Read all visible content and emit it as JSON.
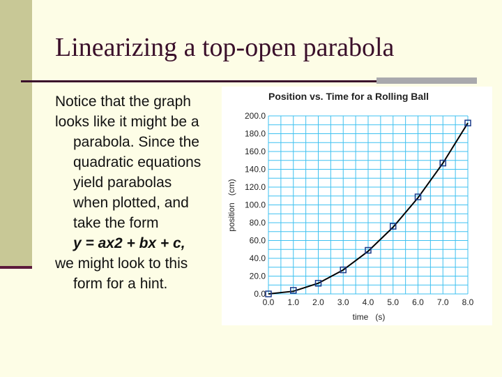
{
  "slide": {
    "title": "Linearizing a top-open parabola",
    "body_lines": [
      "Notice that the graph",
      "looks like it might be a",
      "parabola. Since the",
      "quadratic equations",
      "yield parabolas",
      "when plotted, and",
      "take the form",
      "y = ax2 + bx + c,",
      "we might look to this",
      "form for a hint."
    ]
  },
  "colors": {
    "background": "#fdfde6",
    "accent_strip": "#c8c896",
    "title_text": "#3a0f2a",
    "grid": "#3ec1f0",
    "marker": "#1a3a8a",
    "curve": "#000000"
  },
  "chart_data": {
    "type": "scatter",
    "title": "Position vs. Time for a Rolling Ball",
    "xlabel": "time   (s)",
    "ylabel": "position   (cm)",
    "xlim": [
      0,
      8
    ],
    "ylim": [
      0,
      200
    ],
    "grid": true,
    "x_ticks": [
      "0.0",
      "1.0",
      "2.0",
      "3.0",
      "4.0",
      "5.0",
      "6.0",
      "7.0",
      "8.0"
    ],
    "y_ticks": [
      "0.0",
      "20.0",
      "40.0",
      "60.0",
      "80.0",
      "100.0",
      "120.0",
      "140.0",
      "160.0",
      "180.0",
      "200.0"
    ],
    "series": [
      {
        "x": [
          0,
          1,
          2,
          3,
          4,
          5,
          6,
          7,
          8
        ],
        "values": [
          0,
          4,
          12,
          27,
          49,
          76,
          109,
          147,
          192
        ]
      }
    ],
    "fit_curve": {
      "x": [
        0,
        1,
        2,
        3,
        4,
        5,
        6,
        7,
        8
      ],
      "y": [
        0,
        3,
        12,
        27,
        48,
        75,
        108,
        147,
        192
      ]
    }
  }
}
